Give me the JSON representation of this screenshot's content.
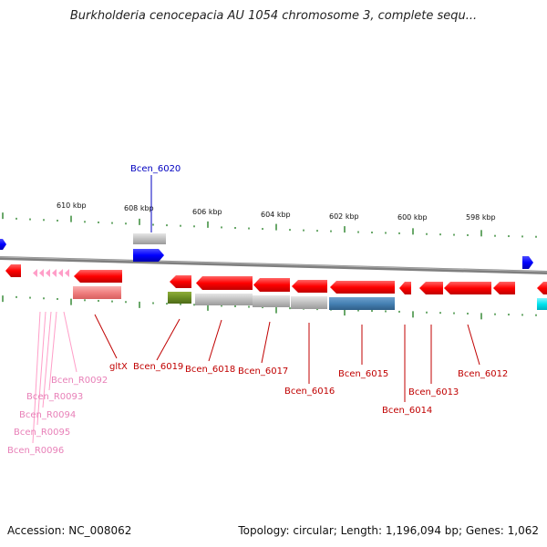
{
  "title": "Burkholderia cenocepacia AU 1054 chromosome 3, complete sequ...",
  "footer": {
    "accession": "Accession: NC_008062",
    "summary": "Topology: circular; Length: 1,196,094 bp; Genes: 1,062"
  },
  "axis": {
    "ticks": [
      {
        "label": "610 kbp"
      },
      {
        "label": "608 kbp"
      },
      {
        "label": "606 kbp"
      },
      {
        "label": "604 kbp"
      },
      {
        "label": "602 kbp"
      },
      {
        "label": "600 kbp"
      },
      {
        "label": "598 kbp"
      }
    ]
  },
  "gene_labels": [
    {
      "text": "Bcen_6020",
      "color": "#0000c0",
      "strand": "forward"
    },
    {
      "text": "gltX",
      "color": "#c00000",
      "strand": "reverse"
    },
    {
      "text": "Bcen_6019",
      "color": "#c00000",
      "strand": "reverse"
    },
    {
      "text": "Bcen_6018",
      "color": "#c00000",
      "strand": "reverse"
    },
    {
      "text": "Bcen_6017",
      "color": "#c00000",
      "strand": "reverse"
    },
    {
      "text": "Bcen_6016",
      "color": "#c00000",
      "strand": "reverse"
    },
    {
      "text": "Bcen_6015",
      "color": "#c00000",
      "strand": "reverse"
    },
    {
      "text": "Bcen_6014",
      "color": "#c00000",
      "strand": "reverse"
    },
    {
      "text": "Bcen_6013",
      "color": "#c00000",
      "strand": "reverse"
    },
    {
      "text": "Bcen_6012",
      "color": "#c00000",
      "strand": "reverse"
    },
    {
      "text": "Bcen_R0092",
      "color": "#e880b8",
      "strand": "reverse"
    },
    {
      "text": "Bcen_R0093",
      "color": "#e880b8",
      "strand": "reverse"
    },
    {
      "text": "Bcen_R0094",
      "color": "#e880b8",
      "strand": "reverse"
    },
    {
      "text": "Bcen_R0095",
      "color": "#e880b8",
      "strand": "reverse"
    },
    {
      "text": "Bcen_R0096",
      "color": "#e880b8",
      "strand": "reverse"
    }
  ],
  "colors": {
    "backbone": "#808080",
    "tick": "#1a7a1a",
    "gene_red": "#ff0000",
    "gene_blue": "#0000ff",
    "trna_pink": "#ff9ec8",
    "cds_pink": "#f08080",
    "cog_gray": "#c0c0c0",
    "cog_green": "#6b8e23",
    "cog_steel": "#4682b4",
    "cog_cyan": "#00e5ee"
  }
}
